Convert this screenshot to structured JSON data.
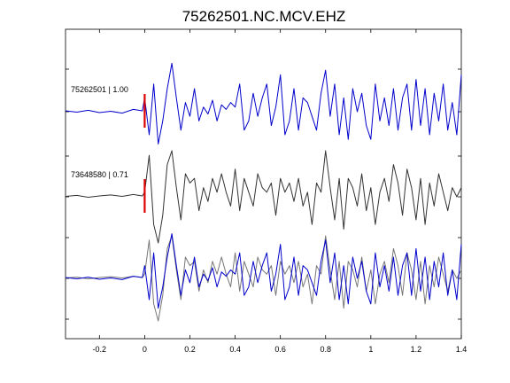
{
  "chart_data": {
    "type": "line",
    "title": "75262501.NC.MCV.EHZ",
    "xlabel": "",
    "ylabel": "",
    "xlim": [
      -0.35,
      1.4
    ],
    "xticks": [
      -0.2,
      0,
      0.2,
      0.4,
      0.6,
      0.8,
      1,
      1.2,
      1.4
    ],
    "xtick_labels": [
      "-0.2",
      "0",
      "0.2",
      "0.4",
      "0.6",
      "0.8",
      "1",
      "1.2",
      "1.4"
    ],
    "grid": false,
    "pick_time": 0,
    "colors": {
      "primary": "#0000cc",
      "secondary": "#333333",
      "overlay_gray": "#777777",
      "pick": "#dd0000"
    },
    "traces": [
      {
        "label": "75262501 | 1.00",
        "color": "#0000cc",
        "x": [
          -0.35,
          -0.3,
          -0.25,
          -0.2,
          -0.15,
          -0.1,
          -0.05,
          -0.01,
          0.0,
          0.02,
          0.04,
          0.06,
          0.08,
          0.1,
          0.12,
          0.14,
          0.16,
          0.18,
          0.2,
          0.22,
          0.24,
          0.26,
          0.28,
          0.3,
          0.32,
          0.34,
          0.36,
          0.38,
          0.4,
          0.42,
          0.44,
          0.46,
          0.48,
          0.5,
          0.52,
          0.54,
          0.56,
          0.58,
          0.6,
          0.62,
          0.64,
          0.66,
          0.68,
          0.7,
          0.72,
          0.74,
          0.76,
          0.78,
          0.8,
          0.82,
          0.84,
          0.86,
          0.88,
          0.9,
          0.92,
          0.94,
          0.96,
          0.98,
          1.0,
          1.02,
          1.04,
          1.06,
          1.08,
          1.1,
          1.12,
          1.14,
          1.16,
          1.18,
          1.2,
          1.22,
          1.24,
          1.26,
          1.28,
          1.3,
          1.32,
          1.34,
          1.36,
          1.38,
          1.4
        ],
        "y": [
          0.02,
          -0.01,
          0.03,
          -0.02,
          0.01,
          -0.03,
          0.05,
          0.02,
          0.3,
          -0.5,
          0.6,
          -0.7,
          -0.2,
          0.5,
          1.05,
          0.3,
          -0.4,
          0.2,
          -0.1,
          0.5,
          -0.2,
          0.1,
          -0.05,
          0.25,
          -0.2,
          0.15,
          0.05,
          0.2,
          0.1,
          0.6,
          -0.4,
          -0.2,
          0.4,
          -0.1,
          0.3,
          0.6,
          -0.3,
          0.1,
          0.8,
          -0.5,
          -0.2,
          0.5,
          -0.4,
          0.3,
          0.2,
          -0.1,
          -0.4,
          0.4,
          0.9,
          -0.1,
          0.6,
          -0.5,
          0.3,
          -0.6,
          0.5,
          0.0,
          0.4,
          -0.3,
          -0.6,
          0.6,
          -0.2,
          0.3,
          -0.3,
          0.5,
          -0.4,
          0.3,
          0.6,
          -0.4,
          0.7,
          -0.3,
          0.5,
          -0.5,
          0.4,
          -0.2,
          0.6,
          -0.4,
          0.2,
          -0.5,
          0.8
        ]
      },
      {
        "label": "73648580 | 0.71",
        "color": "#333333",
        "x": [
          -0.35,
          -0.3,
          -0.25,
          -0.2,
          -0.15,
          -0.1,
          -0.05,
          -0.01,
          0.0,
          0.02,
          0.04,
          0.06,
          0.08,
          0.1,
          0.12,
          0.14,
          0.16,
          0.18,
          0.2,
          0.22,
          0.24,
          0.26,
          0.28,
          0.3,
          0.32,
          0.34,
          0.36,
          0.38,
          0.4,
          0.42,
          0.44,
          0.46,
          0.48,
          0.5,
          0.52,
          0.54,
          0.56,
          0.58,
          0.6,
          0.62,
          0.64,
          0.66,
          0.68,
          0.7,
          0.72,
          0.74,
          0.76,
          0.78,
          0.8,
          0.82,
          0.84,
          0.86,
          0.88,
          0.9,
          0.92,
          0.94,
          0.96,
          0.98,
          1.0,
          1.02,
          1.04,
          1.06,
          1.08,
          1.1,
          1.12,
          1.14,
          1.16,
          1.18,
          1.2,
          1.22,
          1.24,
          1.26,
          1.28,
          1.3,
          1.32,
          1.34,
          1.36,
          1.38,
          1.4
        ],
        "y": [
          0.01,
          0.03,
          -0.01,
          0.02,
          0.04,
          0.01,
          0.05,
          0.02,
          0.1,
          0.9,
          -0.6,
          -1.0,
          -0.4,
          0.7,
          1.0,
          0.2,
          -0.5,
          0.5,
          0.3,
          0.4,
          -0.3,
          0.2,
          -0.1,
          0.4,
          0.1,
          0.5,
          0.1,
          -0.2,
          0.6,
          -0.3,
          0.4,
          0.1,
          -0.2,
          0.5,
          0.2,
          0.1,
          0.3,
          -0.4,
          0.4,
          0.1,
          0.3,
          -0.1,
          0.4,
          -0.2,
          0.1,
          -0.6,
          0.3,
          0.1,
          1.0,
          0.2,
          -0.5,
          0.4,
          -0.7,
          0.4,
          0.2,
          -0.2,
          0.5,
          -0.3,
          0.2,
          -0.6,
          0.1,
          0.4,
          -0.1,
          0.7,
          0.3,
          -0.4,
          0.6,
          0.2,
          -0.5,
          0.4,
          -0.6,
          0.3,
          -0.2,
          0.5,
          0.1,
          -0.3,
          0.2,
          0.0,
          0.2
        ]
      }
    ]
  }
}
